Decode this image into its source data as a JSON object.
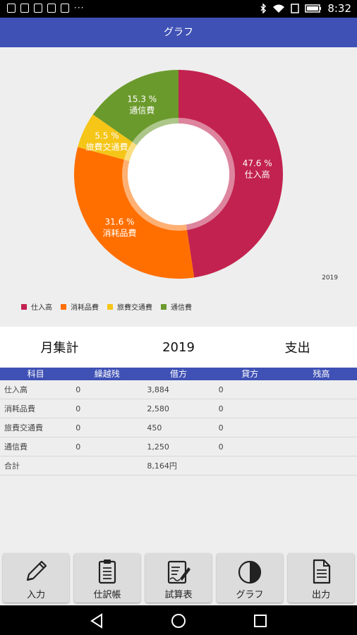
{
  "status_bar": {
    "time": "8:32",
    "dots": "···"
  },
  "app_bar": {
    "title": "グラフ"
  },
  "chart_data": {
    "type": "pie",
    "donut": true,
    "categories": [
      "仕入高",
      "消耗品費",
      "旅費交通費",
      "通信費"
    ],
    "values": [
      47.6,
      31.6,
      5.5,
      15.3
    ],
    "unit": "%",
    "slice_labels": [
      "47.6 %",
      "31.6 %",
      "5.5 %",
      "15.3 %"
    ],
    "colors": [
      "#c2224f",
      "#ff6f00",
      "#f5c518",
      "#6b9a2c"
    ],
    "legend": "bottom-left",
    "description_label": "2019"
  },
  "summary": {
    "left": "月集計",
    "center": "2019",
    "right": "支出"
  },
  "table": {
    "headers": [
      "科目",
      "繰越残",
      "借方",
      "貸方",
      "残高"
    ],
    "rows": [
      [
        "仕入高",
        "0",
        "3,884",
        "0",
        ""
      ],
      [
        "消耗品費",
        "0",
        "2,580",
        "0",
        ""
      ],
      [
        "旅費交通費",
        "0",
        "450",
        "0",
        ""
      ],
      [
        "通信費",
        "0",
        "1,250",
        "0",
        ""
      ]
    ],
    "total": {
      "label": "合計",
      "value": "8,164円"
    }
  },
  "bottom_nav": [
    {
      "label": "入力",
      "icon": "pencil-icon"
    },
    {
      "label": "仕訳帳",
      "icon": "clipboard-icon"
    },
    {
      "label": "試算表",
      "icon": "sign-document-icon"
    },
    {
      "label": "グラフ",
      "icon": "pie-chart-icon"
    },
    {
      "label": "出力",
      "icon": "document-icon"
    }
  ]
}
